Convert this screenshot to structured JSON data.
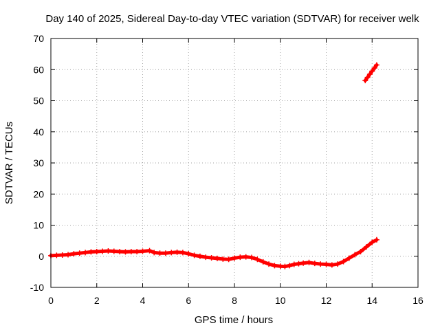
{
  "chart_data": {
    "type": "scatter",
    "title": "Day 140 of 2025, Sidereal Day-to-day VTEC variation (SDTVAR) for receiver welk",
    "xlabel": "GPS time / hours",
    "ylabel": "SDTVAR / TECUs",
    "xlim": [
      0,
      16
    ],
    "ylim": [
      -10,
      70
    ],
    "xticks": [
      0,
      2,
      4,
      6,
      8,
      10,
      12,
      14,
      16
    ],
    "yticks": [
      -10,
      0,
      10,
      20,
      30,
      40,
      50,
      60,
      70
    ],
    "grid": true,
    "legend": "none",
    "marker": "plus",
    "color": "#ff0000",
    "series": [
      {
        "x": [
          0.0,
          0.25,
          0.5,
          0.75,
          1.0,
          1.25,
          1.5,
          1.75,
          2.0,
          2.25,
          2.5,
          2.75,
          3.0,
          3.25,
          3.5,
          3.75,
          4.0,
          4.3,
          4.5,
          4.75,
          5.0,
          5.25,
          5.5,
          5.75,
          6.0,
          6.25,
          6.5,
          6.75,
          7.0,
          7.25,
          7.5,
          7.75,
          8.0,
          8.25,
          8.5,
          8.75,
          9.0,
          9.25,
          9.5,
          9.75,
          10.0,
          10.2,
          10.4,
          10.6,
          10.8,
          11.0,
          11.25,
          11.5,
          11.75,
          12.0,
          12.25,
          12.5,
          12.75,
          13.0,
          13.25,
          13.5,
          13.75,
          14.0,
          14.2
        ],
        "y": [
          0.2,
          0.3,
          0.4,
          0.5,
          0.8,
          1.0,
          1.2,
          1.4,
          1.5,
          1.6,
          1.7,
          1.6,
          1.5,
          1.4,
          1.5,
          1.5,
          1.6,
          1.8,
          1.2,
          1.0,
          1.0,
          1.2,
          1.3,
          1.2,
          0.8,
          0.3,
          0.0,
          -0.3,
          -0.5,
          -0.7,
          -0.9,
          -1.0,
          -0.6,
          -0.3,
          -0.2,
          -0.4,
          -1.0,
          -1.8,
          -2.5,
          -3.0,
          -3.2,
          -3.3,
          -3.0,
          -2.6,
          -2.4,
          -2.2,
          -2.0,
          -2.3,
          -2.5,
          -2.6,
          -2.8,
          -2.5,
          -1.7,
          -0.6,
          0.5,
          1.5,
          3.0,
          4.5,
          5.3
        ]
      },
      {
        "x": [
          13.7,
          13.8,
          13.9,
          14.0,
          14.1,
          14.2
        ],
        "y": [
          56.5,
          57.5,
          58.5,
          59.5,
          60.5,
          61.5
        ]
      }
    ]
  }
}
